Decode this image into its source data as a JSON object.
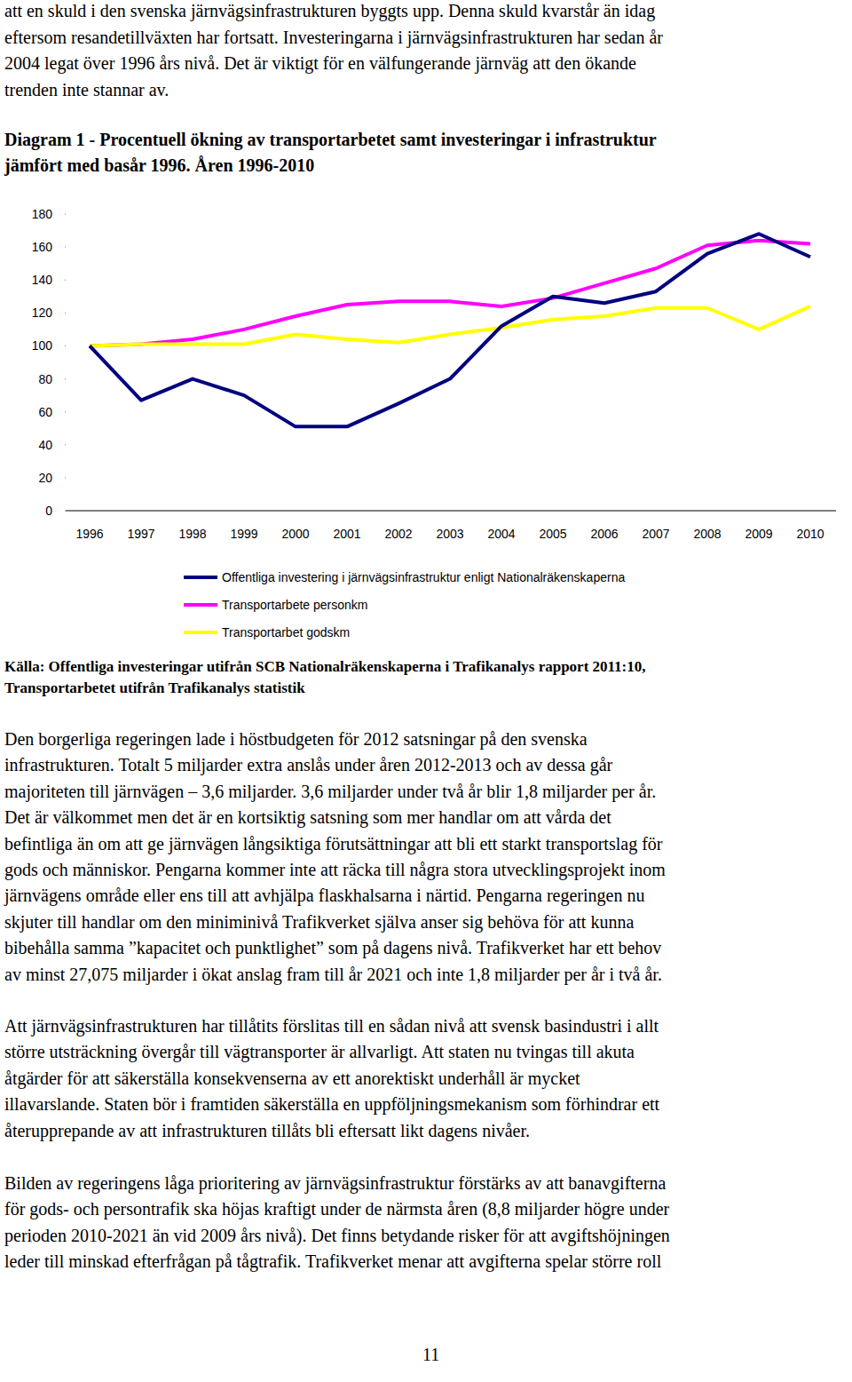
{
  "top_text": [
    "att en skuld i den svenska järnvägsinfrastrukturen byggts upp. Denna skuld kvarstår än idag",
    "eftersom resandetillväxten har fortsatt. Investeringarna i järnvägsinfrastrukturen har sedan år",
    "2004 legat över 1996 års nivå. Det är viktigt för en välfungerande järnväg att den ökande",
    "trenden inte stannar av."
  ],
  "diagram_heading": [
    "Diagram 1 - Procentuell ökning av transportarbetet samt investeringar i infrastruktur",
    "jämfört med basår 1996. Åren 1996-2010"
  ],
  "chart_data": {
    "type": "line",
    "categories": [
      "1996",
      "1997",
      "1998",
      "1999",
      "2000",
      "2001",
      "2002",
      "2003",
      "2004",
      "2005",
      "2006",
      "2007",
      "2008",
      "2009",
      "2010"
    ],
    "series": [
      {
        "name": "Offentliga investering i järnvägsinfrastruktur enligt Nationalräkenskaperna",
        "color": "#000080",
        "values": [
          100,
          67,
          80,
          70,
          51,
          51,
          65,
          80,
          112,
          130,
          126,
          133,
          156,
          168,
          154
        ]
      },
      {
        "name": "Transportarbete personkm",
        "color": "#ff00ff",
        "values": [
          100,
          101,
          104,
          110,
          118,
          125,
          127,
          127,
          124,
          129,
          138,
          147,
          161,
          164,
          162
        ]
      },
      {
        "name": "Transportarbet godskm",
        "color": "#ffff00",
        "values": [
          100,
          101,
          101,
          101,
          107,
          104,
          102,
          107,
          111,
          116,
          118,
          123,
          123,
          110,
          124
        ]
      }
    ],
    "ylim": [
      0,
      180
    ],
    "yticks": [
      0,
      20,
      40,
      60,
      80,
      100,
      120,
      140,
      160,
      180
    ],
    "grid": false,
    "legend": "bottom"
  },
  "source": [
    "Källa: Offentliga investeringar utifrån SCB Nationalräkenskaperna i Trafikanalys rapport 2011:10,",
    "Transportarbetet utifrån Trafikanalys statistik"
  ],
  "paragraphs": [
    {
      "lines": [
        "Den borgerliga regeringen lade i höstbudgeten för 2012 satsningar på den svenska",
        "infrastrukturen. Totalt 5 miljarder extra anslås under åren 2012-2013 och av dessa går",
        "majoriteten till järnvägen – 3,6 miljarder. 3,6 miljarder under två år blir 1,8 miljarder per år.",
        "Det är välkommet men det är en kortsiktig satsning som mer handlar om att vårda det",
        "befintliga än om att ge järnvägen långsiktiga förutsättningar att bli ett starkt transportslag för",
        "gods och människor. Pengarna kommer inte att räcka till några stora utvecklingsprojekt inom",
        "järnvägens område eller ens till att avhjälpa flaskhalsarna i närtid. Pengarna regeringen nu",
        "skjuter till handlar om den miniminivå Trafikverket själva anser sig behöva för att kunna",
        "bibehålla samma ”kapacitet och punktlighet” som på dagens nivå. Trafikverket har ett behov",
        "av minst 27,075 miljarder i ökat anslag fram till år 2021 och inte 1,8 miljarder per år i två år."
      ]
    },
    {
      "lines": [
        "Att järnvägsinfrastrukturen har tillåtits förslitas till en sådan nivå att svensk basindustri i allt",
        "större utsträckning övergår till vägtransporter är allvarligt. Att staten nu tvingas till akuta",
        "åtgärder för att säkerställa konsekvenserna av ett anorektiskt underhåll är mycket",
        "illavarslande. Staten bör i framtiden säkerställa en uppföljningsmekanism som förhindrar ett",
        "återupprepande av att infrastrukturen tillåts bli eftersatt likt dagens nivåer."
      ]
    },
    {
      "lines": [
        "Bilden av regeringens låga prioritering av järnvägsinfrastruktur förstärks av att banavgifterna",
        "för gods- och persontrafik ska höjas kraftigt under de närmsta åren (8,8 miljarder högre under",
        "perioden 2010-2021 än vid 2009 års nivå). Det finns betydande risker för att avgiftshöjningen",
        "leder till minskad efterfrågan på tågtrafik. Trafikverket menar att avgifterna spelar större roll"
      ]
    }
  ],
  "page_number": "11"
}
